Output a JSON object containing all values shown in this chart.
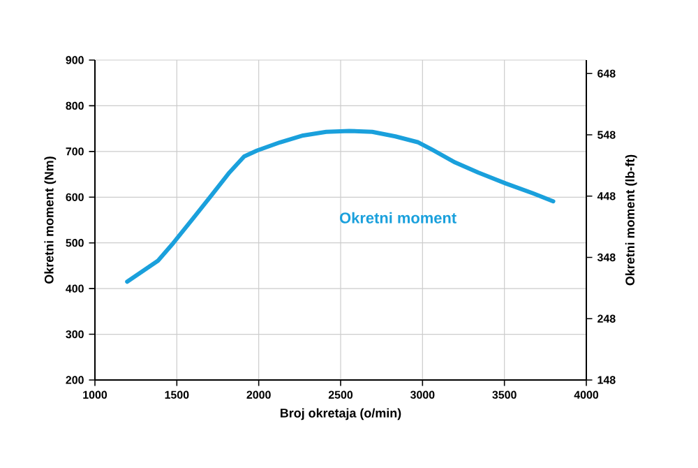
{
  "chart_data": {
    "type": "line",
    "xlabel": "Broj okretaja (o/min)",
    "ylabel": "Okretni moment (Nm)",
    "y2label": "Okretni moment (lb-ft)",
    "x": [
      1197,
      1385,
      1470,
      1596,
      1709,
      1821,
      1911,
      1990,
      2130,
      2271,
      2412,
      2552,
      2693,
      2834,
      2974,
      3058,
      3199,
      3340,
      3508,
      3677,
      3798
    ],
    "series": [
      {
        "name": "Okretni moment",
        "color": "#1aa0dc",
        "values": [
          415,
          461,
          496,
          552,
          603,
          654,
          689,
          702,
          720,
          735,
          743,
          745,
          743,
          733,
          720,
          704,
          676,
          654,
          630,
          608,
          591
        ]
      }
    ],
    "xlim": [
      1000,
      4000
    ],
    "xticks": [
      1000,
      1500,
      2000,
      2500,
      3000,
      3500,
      4000
    ],
    "ylim": [
      200,
      900
    ],
    "yticks": [
      200,
      300,
      400,
      500,
      600,
      700,
      800,
      900
    ],
    "y2lim": [
      148,
      670
    ],
    "y2ticks": [
      148,
      248,
      348,
      448,
      548,
      648
    ],
    "grid": true,
    "legend": false,
    "marker": "none",
    "line_style": "solid"
  }
}
